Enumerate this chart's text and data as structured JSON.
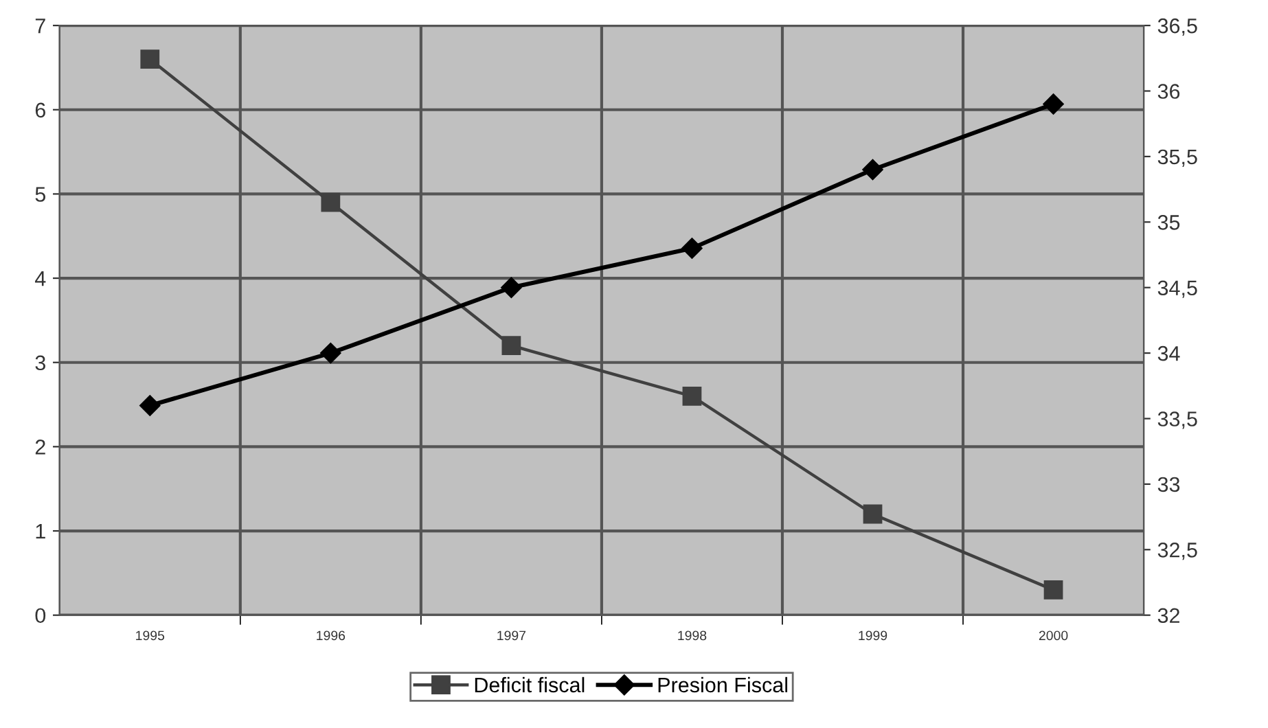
{
  "chart_data": {
    "type": "line",
    "categories": [
      "1995",
      "1996",
      "1997",
      "1998",
      "1999",
      "2000"
    ],
    "series": [
      {
        "name": "Deficit fiscal",
        "color": "#404040",
        "marker": "square",
        "values": [
          6.6,
          4.9,
          3.2,
          2.6,
          1.2,
          0.3
        ]
      },
      {
        "name": "Presion Fiscal",
        "color": "#000000",
        "marker": "diamond",
        "axis": "y2",
        "values": [
          33.6,
          34.0,
          34.5,
          34.8,
          35.4,
          35.9
        ]
      }
    ],
    "ylim": [
      0,
      7
    ],
    "yticks": [
      0,
      1,
      2,
      3,
      4,
      5,
      6,
      7
    ],
    "y2lim": [
      32,
      36.5
    ],
    "y2ticks": [
      32,
      {
        "value": 32.5,
        "label": "32,5"
      },
      33,
      {
        "value": 33.5,
        "label": "33,5"
      },
      34,
      {
        "value": 34.5,
        "label": "34,5"
      },
      35,
      {
        "value": 35.5,
        "label": "35,5"
      },
      36,
      {
        "value": 36.5,
        "label": "36,5"
      }
    ],
    "grid": true,
    "legend": "bottom",
    "line_style": "solid"
  }
}
